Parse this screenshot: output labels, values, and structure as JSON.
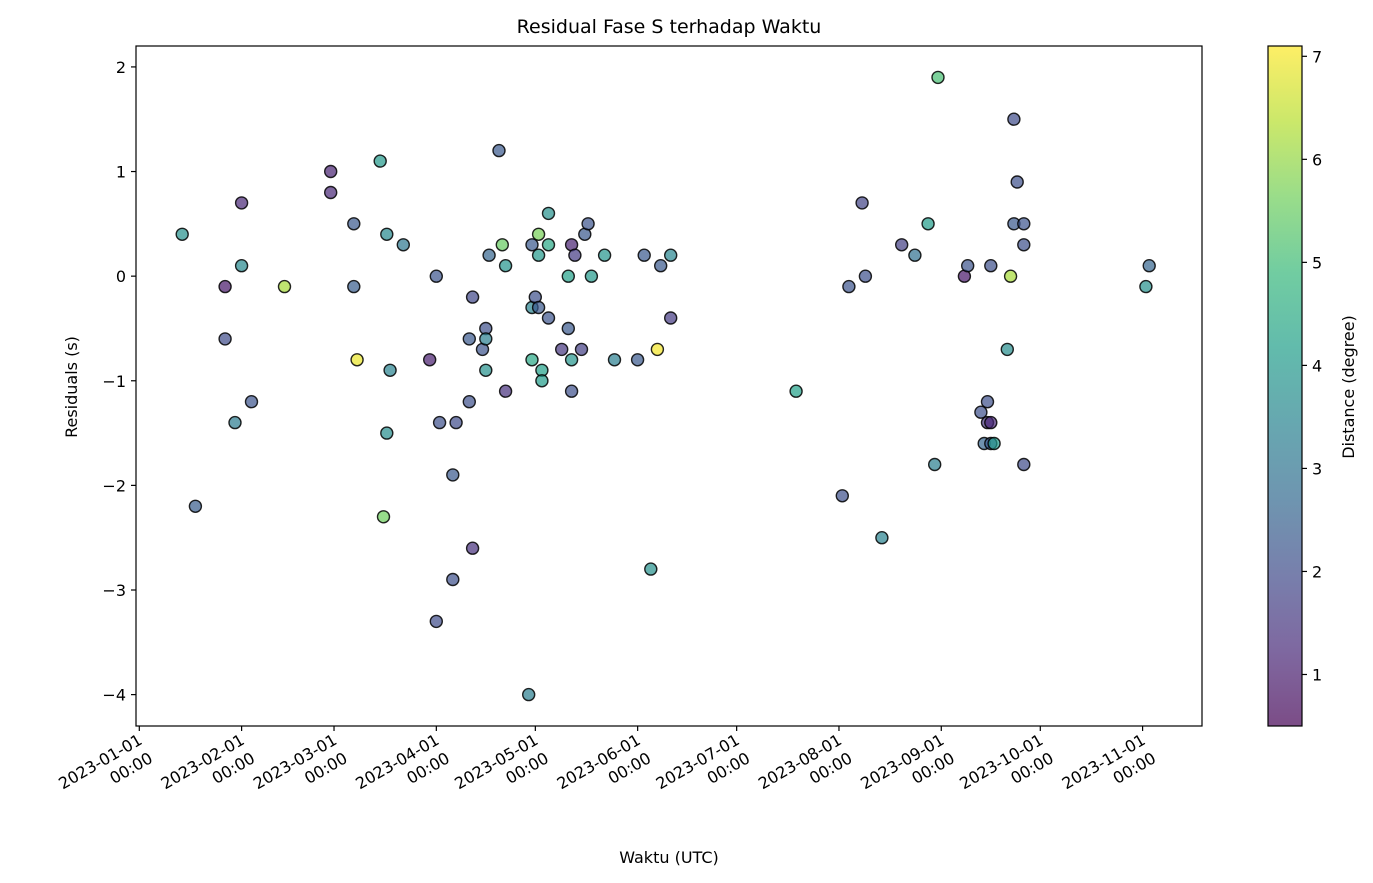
{
  "chart_data": {
    "type": "scatter",
    "title": "Residual Fase S terhadap Waktu",
    "xlabel": "Waktu (UTC)",
    "ylabel": "Residuals (s)",
    "x_ticks": [
      "2023-01-01",
      "2023-02-01",
      "2023-03-01",
      "2023-04-01",
      "2023-05-01",
      "2023-06-01",
      "2023-07-01",
      "2023-08-01",
      "2023-09-01",
      "2023-10-01",
      "2023-11-01"
    ],
    "x_tick_time": "00:00",
    "xlim": [
      "2022-12-31",
      "2023-11-19"
    ],
    "y_ticks": [
      2,
      1,
      0,
      -1,
      -2,
      -3,
      -4
    ],
    "ylim": [
      -4.3,
      2.2
    ],
    "grid": false,
    "colorbar": {
      "label": "Distance (degree)",
      "ticks": [
        7,
        6,
        5,
        4,
        3,
        2,
        1
      ],
      "range": [
        0.5,
        7.1
      ],
      "colormap": [
        "#440154",
        "#482878",
        "#3e4989",
        "#31688e",
        "#26828e",
        "#1f9e89",
        "#35b779",
        "#6ece58",
        "#b5de2b",
        "#fde725"
      ]
    },
    "marker_edge_color": "#000000",
    "marker_alpha": 0.7,
    "points": [
      {
        "x": "2023-01-14",
        "y": 0.4,
        "c": 3.8
      },
      {
        "x": "2023-01-18",
        "y": -2.2,
        "c": 2.4
      },
      {
        "x": "2023-01-27",
        "y": -0.1,
        "c": 0.9
      },
      {
        "x": "2023-01-27",
        "y": -0.6,
        "c": 2.0
      },
      {
        "x": "2023-01-30",
        "y": -1.4,
        "c": 3.2
      },
      {
        "x": "2023-02-01",
        "y": 0.7,
        "c": 1.2
      },
      {
        "x": "2023-02-01",
        "y": 0.1,
        "c": 3.6
      },
      {
        "x": "2023-02-04",
        "y": -1.2,
        "c": 2.2
      },
      {
        "x": "2023-02-14",
        "y": -0.1,
        "c": 6.2
      },
      {
        "x": "2023-02-28",
        "y": 1.0,
        "c": 1.1
      },
      {
        "x": "2023-02-28",
        "y": 0.8,
        "c": 1.2
      },
      {
        "x": "2023-03-07",
        "y": 0.5,
        "c": 2.3
      },
      {
        "x": "2023-03-07",
        "y": -0.1,
        "c": 2.4
      },
      {
        "x": "2023-03-08",
        "y": -0.8,
        "c": 6.9
      },
      {
        "x": "2023-03-15",
        "y": 1.1,
        "c": 4.0
      },
      {
        "x": "2023-03-16",
        "y": -2.3,
        "c": 5.6
      },
      {
        "x": "2023-03-17",
        "y": -1.5,
        "c": 3.7
      },
      {
        "x": "2023-03-17",
        "y": 0.4,
        "c": 3.6
      },
      {
        "x": "2023-03-18",
        "y": -0.9,
        "c": 3.4
      },
      {
        "x": "2023-03-22",
        "y": 0.3,
        "c": 3.1
      },
      {
        "x": "2023-03-30",
        "y": -0.8,
        "c": 1.0
      },
      {
        "x": "2023-04-01",
        "y": 0.0,
        "c": 2.2
      },
      {
        "x": "2023-04-01",
        "y": -3.3,
        "c": 2.0
      },
      {
        "x": "2023-04-02",
        "y": -1.4,
        "c": 2.1
      },
      {
        "x": "2023-04-06",
        "y": -2.9,
        "c": 2.1
      },
      {
        "x": "2023-04-06",
        "y": -1.9,
        "c": 2.3
      },
      {
        "x": "2023-04-07",
        "y": -1.4,
        "c": 2.0
      },
      {
        "x": "2023-04-11",
        "y": -1.2,
        "c": 2.1
      },
      {
        "x": "2023-04-11",
        "y": -0.6,
        "c": 2.3
      },
      {
        "x": "2023-04-12",
        "y": -0.2,
        "c": 1.9
      },
      {
        "x": "2023-04-12",
        "y": -2.6,
        "c": 1.4
      },
      {
        "x": "2023-04-15",
        "y": -0.7,
        "c": 2.2
      },
      {
        "x": "2023-04-16",
        "y": -0.5,
        "c": 2.1
      },
      {
        "x": "2023-04-16",
        "y": -0.6,
        "c": 3.3
      },
      {
        "x": "2023-04-16",
        "y": -0.9,
        "c": 3.8
      },
      {
        "x": "2023-04-17",
        "y": 0.2,
        "c": 2.6
      },
      {
        "x": "2023-04-20",
        "y": 1.2,
        "c": 2.3
      },
      {
        "x": "2023-04-21",
        "y": 0.3,
        "c": 5.5
      },
      {
        "x": "2023-04-22",
        "y": -1.1,
        "c": 1.4
      },
      {
        "x": "2023-04-22",
        "y": 0.1,
        "c": 3.9
      },
      {
        "x": "2023-04-29",
        "y": -4.0,
        "c": 3.3
      },
      {
        "x": "2023-04-30",
        "y": 0.3,
        "c": 2.3
      },
      {
        "x": "2023-04-30",
        "y": -0.8,
        "c": 4.4
      },
      {
        "x": "2023-04-30",
        "y": -0.3,
        "c": 3.4
      },
      {
        "x": "2023-05-01",
        "y": -0.2,
        "c": 2.1
      },
      {
        "x": "2023-05-02",
        "y": 0.4,
        "c": 5.7
      },
      {
        "x": "2023-05-02",
        "y": 0.2,
        "c": 4.0
      },
      {
        "x": "2023-05-02",
        "y": -0.3,
        "c": 2.3
      },
      {
        "x": "2023-05-03",
        "y": -0.9,
        "c": 4.2
      },
      {
        "x": "2023-05-03",
        "y": -1.0,
        "c": 4.1
      },
      {
        "x": "2023-05-05",
        "y": -0.4,
        "c": 2.2
      },
      {
        "x": "2023-05-05",
        "y": 0.6,
        "c": 3.8
      },
      {
        "x": "2023-05-05",
        "y": 0.3,
        "c": 4.4
      },
      {
        "x": "2023-05-09",
        "y": -0.7,
        "c": 1.5
      },
      {
        "x": "2023-05-11",
        "y": 0.0,
        "c": 4.2
      },
      {
        "x": "2023-05-11",
        "y": -0.5,
        "c": 2.3
      },
      {
        "x": "2023-05-12",
        "y": -0.8,
        "c": 3.9
      },
      {
        "x": "2023-05-12",
        "y": -1.1,
        "c": 2.1
      },
      {
        "x": "2023-05-12",
        "y": 0.3,
        "c": 1.1
      },
      {
        "x": "2023-05-13",
        "y": 0.2,
        "c": 1.6
      },
      {
        "x": "2023-05-15",
        "y": -0.7,
        "c": 1.7
      },
      {
        "x": "2023-05-16",
        "y": 0.4,
        "c": 2.3
      },
      {
        "x": "2023-05-17",
        "y": 0.5,
        "c": 2.2
      },
      {
        "x": "2023-05-18",
        "y": 0.0,
        "c": 4.0
      },
      {
        "x": "2023-05-22",
        "y": 0.2,
        "c": 3.9
      },
      {
        "x": "2023-05-25",
        "y": -0.8,
        "c": 3.3
      },
      {
        "x": "2023-06-01",
        "y": -0.8,
        "c": 2.3
      },
      {
        "x": "2023-06-03",
        "y": 0.2,
        "c": 2.3
      },
      {
        "x": "2023-06-05",
        "y": -2.8,
        "c": 3.8
      },
      {
        "x": "2023-06-07",
        "y": -0.7,
        "c": 7.0
      },
      {
        "x": "2023-06-08",
        "y": 0.1,
        "c": 2.3
      },
      {
        "x": "2023-06-11",
        "y": 0.2,
        "c": 3.5
      },
      {
        "x": "2023-06-11",
        "y": -0.4,
        "c": 1.6
      },
      {
        "x": "2023-07-19",
        "y": -1.1,
        "c": 4.2
      },
      {
        "x": "2023-08-02",
        "y": -2.1,
        "c": 2.1
      },
      {
        "x": "2023-08-04",
        "y": -0.1,
        "c": 2.2
      },
      {
        "x": "2023-08-08",
        "y": 0.7,
        "c": 1.8
      },
      {
        "x": "2023-08-09",
        "y": 0.0,
        "c": 2.1
      },
      {
        "x": "2023-08-14",
        "y": -2.5,
        "c": 3.4
      },
      {
        "x": "2023-08-20",
        "y": 0.3,
        "c": 1.7
      },
      {
        "x": "2023-08-24",
        "y": 0.2,
        "c": 2.9
      },
      {
        "x": "2023-08-28",
        "y": 0.5,
        "c": 4.1
      },
      {
        "x": "2023-08-30",
        "y": -1.8,
        "c": 3.3
      },
      {
        "x": "2023-08-31",
        "y": 1.9,
        "c": 5.1
      },
      {
        "x": "2023-09-08",
        "y": 0.0,
        "c": 0.9
      },
      {
        "x": "2023-09-09",
        "y": 0.1,
        "c": 2.2
      },
      {
        "x": "2023-09-13",
        "y": -1.3,
        "c": 2.1
      },
      {
        "x": "2023-09-14",
        "y": -1.6,
        "c": 2.6
      },
      {
        "x": "2023-09-15",
        "y": -1.2,
        "c": 2.1
      },
      {
        "x": "2023-09-15",
        "y": -1.4,
        "c": 1.5
      },
      {
        "x": "2023-09-16",
        "y": -1.4,
        "c": 1.2
      },
      {
        "x": "2023-09-16",
        "y": 0.1,
        "c": 2.1
      },
      {
        "x": "2023-09-16",
        "y": -1.6,
        "c": 2.3
      },
      {
        "x": "2023-09-17",
        "y": -1.6,
        "c": 4.0
      },
      {
        "x": "2023-09-21",
        "y": -0.7,
        "c": 3.7
      },
      {
        "x": "2023-09-22",
        "y": 0.0,
        "c": 6.2
      },
      {
        "x": "2023-09-23",
        "y": 1.5,
        "c": 2.0
      },
      {
        "x": "2023-09-23",
        "y": 0.5,
        "c": 2.3
      },
      {
        "x": "2023-09-24",
        "y": 0.9,
        "c": 2.1
      },
      {
        "x": "2023-09-26",
        "y": 0.5,
        "c": 2.2
      },
      {
        "x": "2023-09-26",
        "y": 0.3,
        "c": 2.1
      },
      {
        "x": "2023-09-26",
        "y": -1.8,
        "c": 2.0
      },
      {
        "x": "2023-11-02",
        "y": -0.1,
        "c": 3.8
      },
      {
        "x": "2023-11-03",
        "y": 0.1,
        "c": 2.6
      }
    ]
  }
}
